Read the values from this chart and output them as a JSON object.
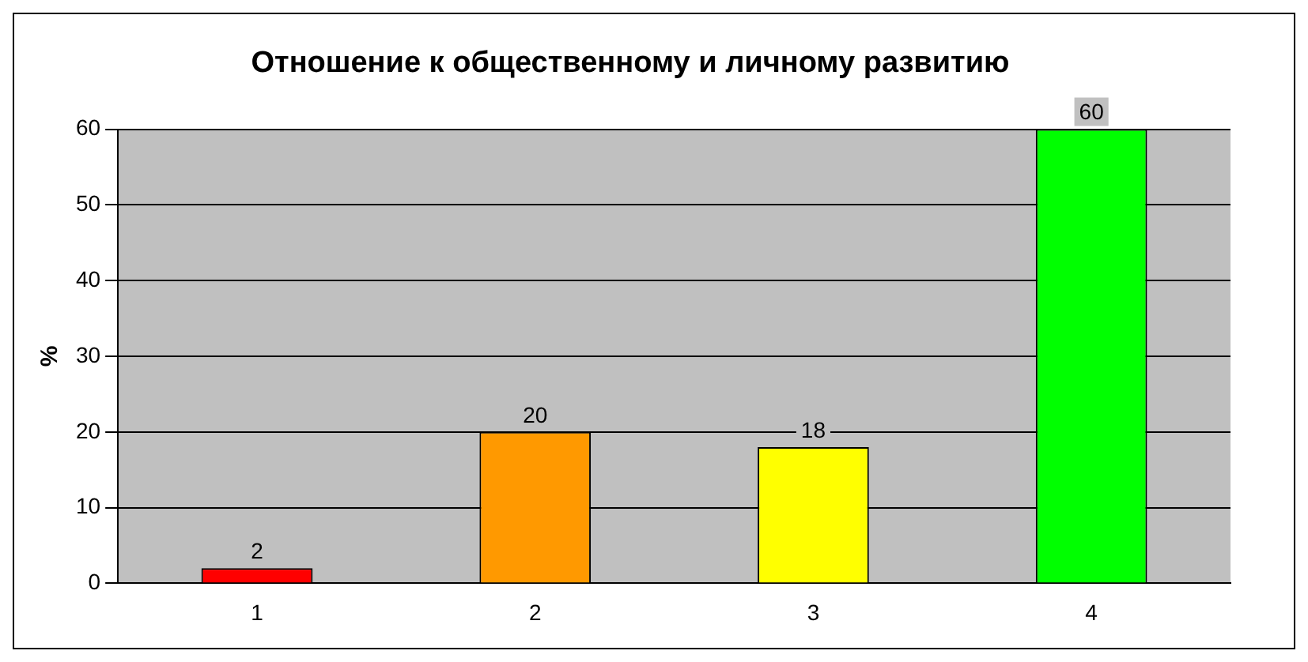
{
  "chart_data": {
    "type": "bar",
    "title": "Отношение к общественному и личному развитию",
    "ylabel": "%",
    "categories": [
      "1",
      "2",
      "3",
      "4"
    ],
    "values": [
      2,
      20,
      18,
      60
    ],
    "colors": [
      "#ff0000",
      "#ff9900",
      "#ffff00",
      "#00ff00"
    ],
    "ylim": [
      0,
      60
    ],
    "yticks": [
      0,
      10,
      20,
      30,
      40,
      50,
      60
    ],
    "grid": "y",
    "legend": false,
    "data_labels": true
  }
}
